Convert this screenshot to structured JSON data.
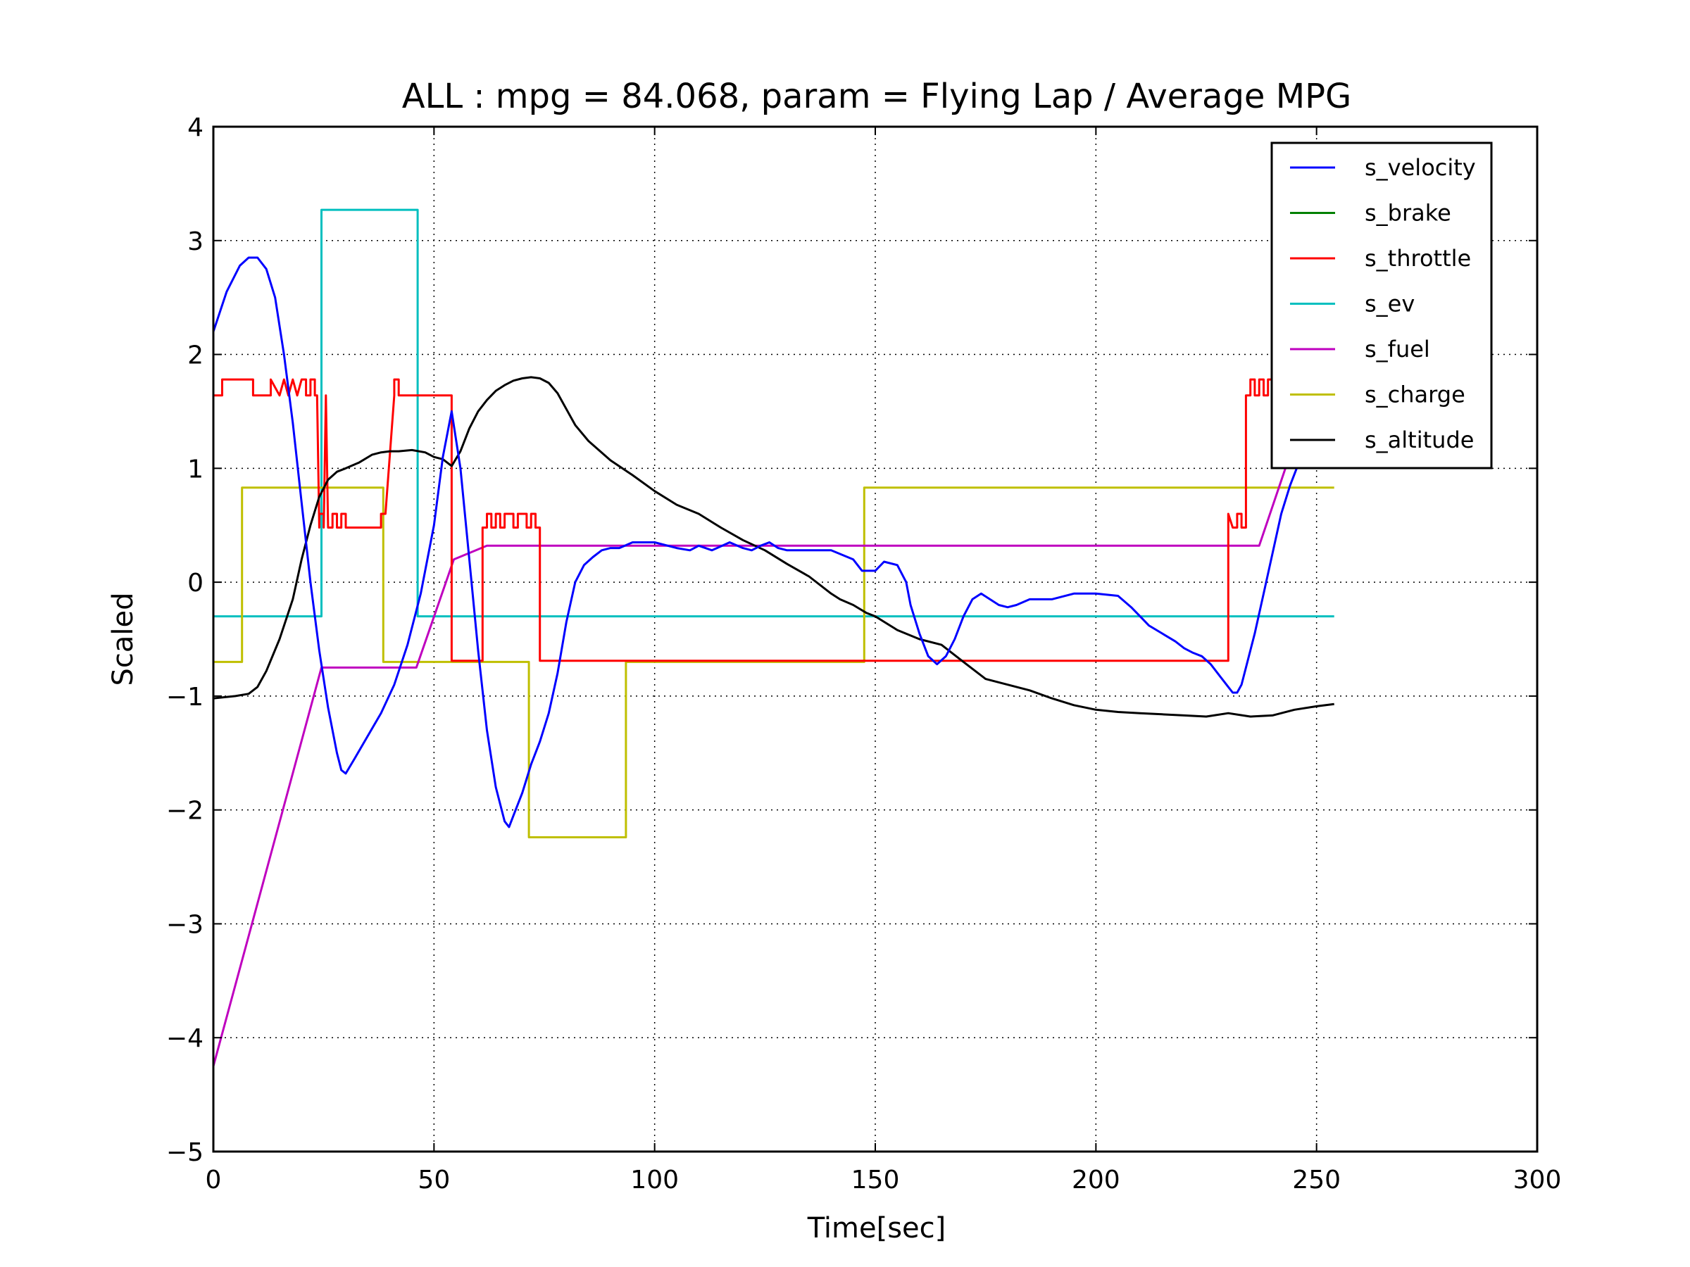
{
  "chart_data": {
    "type": "line",
    "title": "ALL : mpg = 84.068, param = Flying Lap / Average MPG",
    "xlabel": "Time[sec]",
    "ylabel": "Scaled",
    "xlim": [
      0,
      300
    ],
    "ylim": [
      -5,
      4
    ],
    "xticks": [
      0,
      50,
      100,
      150,
      200,
      250,
      300
    ],
    "yticks": [
      -5,
      -4,
      -3,
      -2,
      -1,
      0,
      1,
      2,
      3,
      4
    ],
    "xtick_labels": [
      "0",
      "50",
      "100",
      "150",
      "200",
      "250",
      "300"
    ],
    "ytick_labels": [
      "−5",
      "−4",
      "−3",
      "−2",
      "−1",
      "0",
      "1",
      "2",
      "3",
      "4"
    ],
    "grid": true,
    "legend_position": "top-right",
    "series": [
      {
        "name": "s_velocity",
        "color": "#0000ff",
        "x": [
          0,
          3,
          6,
          8,
          10,
          12,
          14,
          16,
          18,
          20,
          22,
          24,
          26,
          28,
          29,
          30,
          32,
          35,
          38,
          41,
          44,
          47,
          50,
          52,
          54,
          56,
          58,
          60,
          62,
          64,
          66,
          67,
          68,
          70,
          72,
          74,
          76,
          78,
          80,
          82,
          84,
          86,
          88,
          90,
          92,
          95,
          100,
          105,
          108,
          110,
          113,
          117,
          120,
          122,
          124,
          126,
          128,
          130,
          135,
          140,
          145,
          147,
          150,
          152,
          155,
          157,
          158,
          160,
          162,
          164,
          166,
          168,
          170,
          172,
          174,
          176,
          178,
          180,
          182,
          185,
          190,
          195,
          200,
          205,
          208,
          210,
          212,
          215,
          218,
          220,
          222,
          224,
          226,
          228,
          230,
          231,
          232,
          233,
          234,
          236,
          238,
          240,
          242,
          244,
          246
        ],
        "y": [
          2.2,
          2.55,
          2.78,
          2.85,
          2.85,
          2.75,
          2.5,
          2.0,
          1.4,
          0.7,
          0.0,
          -0.6,
          -1.1,
          -1.5,
          -1.65,
          -1.68,
          -1.55,
          -1.35,
          -1.15,
          -0.9,
          -0.55,
          -0.1,
          0.5,
          1.1,
          1.5,
          1.0,
          0.2,
          -0.6,
          -1.3,
          -1.8,
          -2.1,
          -2.15,
          -2.05,
          -1.85,
          -1.6,
          -1.4,
          -1.15,
          -0.8,
          -0.35,
          0.0,
          0.15,
          0.22,
          0.28,
          0.3,
          0.3,
          0.35,
          0.35,
          0.3,
          0.28,
          0.32,
          0.28,
          0.35,
          0.3,
          0.28,
          0.32,
          0.35,
          0.3,
          0.28,
          0.28,
          0.28,
          0.2,
          0.1,
          0.1,
          0.18,
          0.15,
          0.0,
          -0.2,
          -0.45,
          -0.65,
          -0.72,
          -0.65,
          -0.5,
          -0.3,
          -0.15,
          -0.1,
          -0.15,
          -0.2,
          -0.22,
          -0.2,
          -0.15,
          -0.15,
          -0.1,
          -0.1,
          -0.12,
          -0.22,
          -0.3,
          -0.38,
          -0.45,
          -0.52,
          -0.58,
          -0.62,
          -0.65,
          -0.72,
          -0.82,
          -0.92,
          -0.97,
          -0.97,
          -0.9,
          -0.75,
          -0.45,
          -0.1,
          0.25,
          0.6,
          0.85,
          1.05
        ]
      },
      {
        "name": "s_brake",
        "color": "#008000",
        "x": [],
        "y": []
      },
      {
        "name": "s_throttle",
        "color": "#ff0000",
        "x": [
          0,
          2,
          2,
          6,
          6,
          9,
          9,
          13,
          13,
          15,
          16,
          17,
          18,
          19,
          20,
          21,
          21,
          22,
          22,
          23,
          23,
          23.5,
          24,
          24,
          25,
          25,
          25.5,
          26,
          26,
          27,
          27,
          28,
          28,
          29,
          29,
          30,
          30,
          31,
          31,
          38,
          38,
          39,
          41,
          41,
          42,
          42,
          43,
          43,
          47,
          47,
          54,
          54,
          61,
          61,
          62,
          62,
          63,
          63,
          64,
          64,
          65,
          65,
          66,
          66,
          68,
          68,
          69,
          69,
          71,
          71,
          72,
          72,
          73,
          73,
          74,
          74,
          230,
          230,
          231,
          232,
          232,
          233,
          233,
          234,
          234,
          235,
          235,
          236,
          236,
          237,
          237,
          238,
          238,
          239,
          239,
          240,
          240,
          241
        ],
        "y": [
          1.64,
          1.64,
          1.78,
          1.78,
          1.78,
          1.78,
          1.64,
          1.64,
          1.78,
          1.64,
          1.78,
          1.64,
          1.78,
          1.64,
          1.78,
          1.78,
          1.64,
          1.64,
          1.78,
          1.78,
          1.64,
          1.64,
          0.48,
          0.6,
          0.6,
          0.48,
          1.64,
          0.48,
          0.48,
          0.48,
          0.6,
          0.6,
          0.48,
          0.48,
          0.6,
          0.6,
          0.48,
          0.48,
          0.48,
          0.48,
          0.6,
          0.6,
          1.64,
          1.78,
          1.78,
          1.64,
          1.64,
          1.64,
          1.64,
          1.64,
          1.64,
          -0.69,
          -0.69,
          0.48,
          0.48,
          0.6,
          0.6,
          0.48,
          0.48,
          0.6,
          0.6,
          0.48,
          0.48,
          0.6,
          0.6,
          0.48,
          0.48,
          0.6,
          0.6,
          0.48,
          0.48,
          0.6,
          0.6,
          0.48,
          0.48,
          -0.69,
          -0.69,
          0.6,
          0.48,
          0.48,
          0.6,
          0.6,
          0.48,
          0.48,
          1.64,
          1.64,
          1.78,
          1.78,
          1.64,
          1.64,
          1.78,
          1.78,
          1.64,
          1.64,
          1.78,
          1.78,
          1.64,
          1.64
        ]
      },
      {
        "name": "s_ev",
        "color": "#00bfbf",
        "x": [
          0,
          24.5,
          24.5,
          46.3,
          46.3,
          254
        ],
        "y": [
          -0.3,
          -0.3,
          3.27,
          3.27,
          -0.3,
          -0.3
        ]
      },
      {
        "name": "s_fuel",
        "color": "#bf00bf",
        "x": [
          0,
          24.5,
          46,
          54.5,
          62,
          237,
          246
        ],
        "y": [
          -4.25,
          -0.75,
          -0.75,
          0.2,
          0.32,
          0.32,
          1.35
        ]
      },
      {
        "name": "s_charge",
        "color": "#bfbf00",
        "x": [
          0,
          6.5,
          6.5,
          38.5,
          38.5,
          71.5,
          71.5,
          93.5,
          93.5,
          147.5,
          147.5,
          254
        ],
        "y": [
          -0.7,
          -0.7,
          0.83,
          0.83,
          -0.7,
          -0.7,
          -2.24,
          -2.24,
          -0.7,
          -0.7,
          0.83,
          0.83
        ]
      },
      {
        "name": "s_altitude",
        "color": "#000000",
        "x": [
          0,
          5,
          8,
          10,
          12,
          15,
          18,
          20,
          22,
          24,
          26,
          28,
          30,
          33,
          36,
          38,
          40,
          42,
          45,
          48,
          50,
          52,
          54,
          56,
          58,
          60,
          62,
          64,
          66,
          68,
          70,
          72,
          74,
          76,
          78,
          80,
          82,
          85,
          90,
          95,
          100,
          105,
          110,
          115,
          120,
          125,
          130,
          135,
          140,
          142,
          145,
          148,
          150,
          155,
          160,
          165,
          170,
          175,
          180,
          185,
          190,
          195,
          200,
          205,
          210,
          215,
          220,
          225,
          230,
          235,
          240,
          245,
          250,
          254
        ],
        "y": [
          -1.02,
          -1.0,
          -0.98,
          -0.92,
          -0.78,
          -0.5,
          -0.15,
          0.2,
          0.5,
          0.75,
          0.9,
          0.97,
          1.0,
          1.05,
          1.12,
          1.14,
          1.15,
          1.15,
          1.16,
          1.14,
          1.1,
          1.08,
          1.02,
          1.15,
          1.35,
          1.5,
          1.6,
          1.68,
          1.73,
          1.77,
          1.79,
          1.8,
          1.79,
          1.75,
          1.66,
          1.52,
          1.38,
          1.24,
          1.07,
          0.94,
          0.8,
          0.68,
          0.6,
          0.48,
          0.37,
          0.28,
          0.16,
          0.05,
          -0.1,
          -0.15,
          -0.2,
          -0.27,
          -0.3,
          -0.42,
          -0.5,
          -0.55,
          -0.7,
          -0.85,
          -0.9,
          -0.95,
          -1.02,
          -1.08,
          -1.12,
          -1.14,
          -1.15,
          -1.16,
          -1.17,
          -1.18,
          -1.15,
          -1.18,
          -1.17,
          -1.12,
          -1.09,
          -1.07
        ]
      }
    ]
  }
}
